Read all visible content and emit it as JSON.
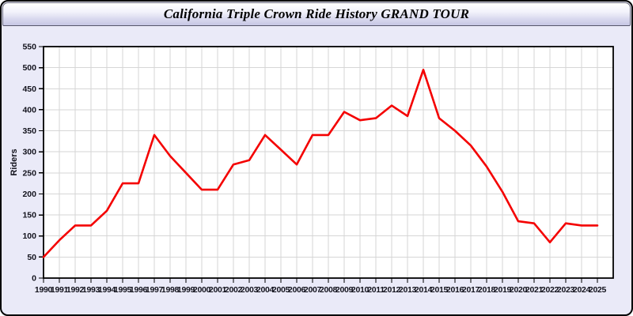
{
  "window": {
    "title": "California Triple Crown Ride History GRAND TOUR"
  },
  "colors": {
    "window_bg": "#eaeaf8",
    "titlebar_top": "#ffffff",
    "titlebar_bottom": "#c7c7e4",
    "plot_bg": "#ffffff",
    "grid": "#d6d6d6",
    "axis_frame": "#000000",
    "tick_label": "#12121c",
    "line": "#f40000"
  },
  "chart_data": {
    "type": "line",
    "title": "California Triple Crown Ride History GRAND TOUR",
    "xlabel": "",
    "ylabel": "Riders",
    "x": [
      1990,
      1991,
      1992,
      1993,
      1994,
      1995,
      1996,
      1997,
      1998,
      1999,
      2000,
      2001,
      2002,
      2003,
      2004,
      2005,
      2006,
      2007,
      2008,
      2009,
      2010,
      2011,
      2012,
      2013,
      2014,
      2015,
      2016,
      2017,
      2018,
      2019,
      2020,
      2021,
      2022,
      2023,
      2024,
      2025
    ],
    "series": [
      {
        "name": "Riders",
        "values": [
          50,
          90,
          125,
          125,
          160,
          225,
          225,
          340,
          290,
          250,
          210,
          210,
          270,
          280,
          340,
          305,
          270,
          340,
          340,
          395,
          375,
          380,
          410,
          385,
          495,
          380,
          350,
          315,
          265,
          205,
          135,
          130,
          85,
          130,
          125,
          125
        ]
      }
    ],
    "ylim": [
      0,
      550
    ],
    "yticks": [
      0,
      50,
      100,
      150,
      200,
      250,
      300,
      350,
      400,
      450,
      500,
      550
    ],
    "grid": true,
    "legend": false,
    "line_color": "#f40000"
  }
}
